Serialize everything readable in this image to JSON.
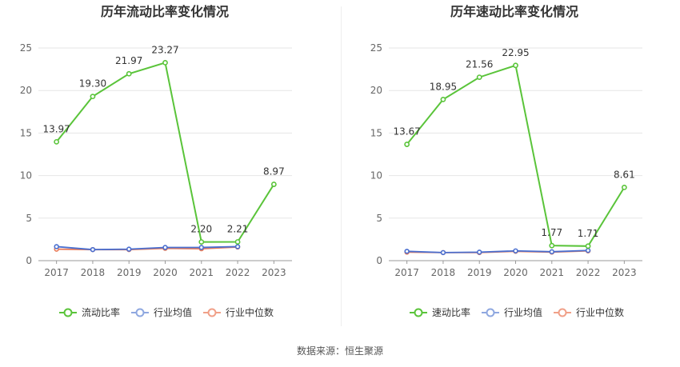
{
  "source_label": "数据来源：恒生聚源",
  "colors": {
    "company": "#5ac43a",
    "industry_avg": "#8fa8e0",
    "industry_median": "#f0a088",
    "avg_line": "#4a6fd0",
    "median_line": "#e87a58",
    "grid": "#e6e6e6",
    "axis": "#666666"
  },
  "chart_data": [
    {
      "type": "line",
      "title": "历年流动比率变化情况",
      "x": [
        "2017",
        "2018",
        "2019",
        "2020",
        "2021",
        "2022",
        "2023"
      ],
      "ylim": [
        0,
        25
      ],
      "yticks": [
        0,
        5,
        10,
        15,
        20,
        25
      ],
      "grid": true,
      "legend_position": "bottom",
      "series": [
        {
          "name": "流动比率",
          "values": [
            13.97,
            19.3,
            21.97,
            23.27,
            2.2,
            2.21,
            8.97
          ],
          "labels": [
            "13.97",
            "19.30",
            "21.97",
            "23.27",
            "2.20",
            "2.21",
            "8.97"
          ]
        },
        {
          "name": "行业均值",
          "values": [
            1.65,
            1.3,
            1.35,
            1.55,
            1.55,
            1.65,
            null
          ]
        },
        {
          "name": "行业中位数",
          "values": [
            1.35,
            1.3,
            1.3,
            1.45,
            1.4,
            1.6,
            null
          ]
        }
      ]
    },
    {
      "type": "line",
      "title": "历年速动比率变化情况",
      "x": [
        "2017",
        "2018",
        "2019",
        "2020",
        "2021",
        "2022",
        "2023"
      ],
      "ylim": [
        0,
        25
      ],
      "yticks": [
        0,
        5,
        10,
        15,
        20,
        25
      ],
      "grid": true,
      "legend_position": "bottom",
      "series": [
        {
          "name": "速动比率",
          "values": [
            13.67,
            18.95,
            21.56,
            22.95,
            1.77,
            1.71,
            8.61
          ],
          "labels": [
            "13.67",
            "18.95",
            "21.56",
            "22.95",
            "1.77",
            "1.71",
            "8.61"
          ]
        },
        {
          "name": "行业均值",
          "values": [
            1.1,
            0.95,
            1.0,
            1.15,
            1.05,
            1.2,
            null
          ]
        },
        {
          "name": "行业中位数",
          "values": [
            1.0,
            0.95,
            0.95,
            1.1,
            1.0,
            1.15,
            null
          ]
        }
      ]
    }
  ]
}
